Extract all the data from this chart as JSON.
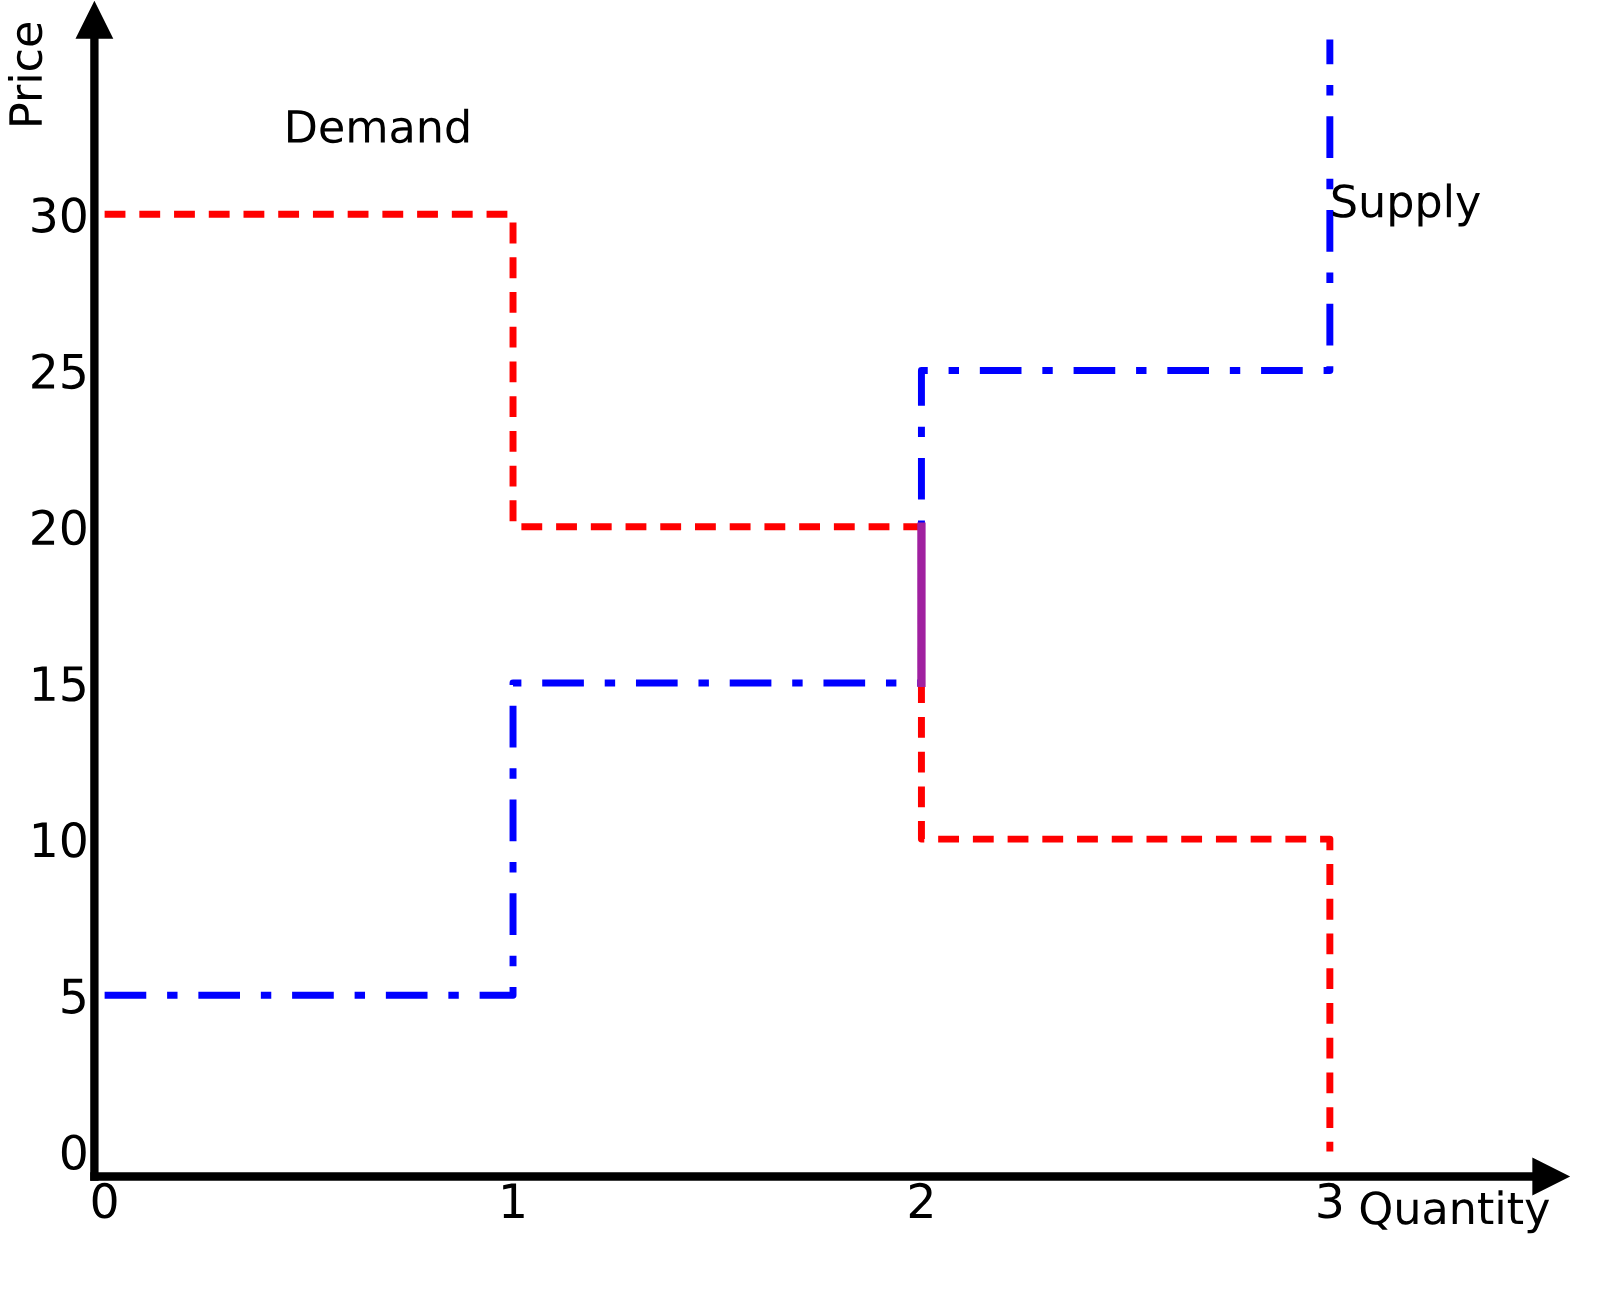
{
  "chart_data": {
    "type": "step",
    "xlabel": "Quantity",
    "ylabel": "Price",
    "xlim": [
      -0.025,
      3.54
    ],
    "ylim": [
      -0.8,
      36.2
    ],
    "xticks": [
      0,
      1,
      2,
      3
    ],
    "yticks": [
      0,
      5,
      10,
      15,
      20,
      25,
      30
    ],
    "grid": false,
    "legend": false,
    "series": [
      {
        "name": "Demand",
        "color": "#ff0000",
        "line_style": "dashed",
        "x": [
          0,
          1,
          2,
          3
        ],
        "values": [
          30,
          20,
          10,
          0
        ]
      },
      {
        "name": "Supply",
        "color": "#0000ff",
        "line_style": "dashdot",
        "x": [
          0,
          1,
          2,
          3
        ],
        "values": [
          5,
          15,
          25,
          35.6
        ]
      },
      {
        "type": "line",
        "color": "#a020a0",
        "line_style": "solid",
        "x": [
          2,
          2
        ],
        "values": [
          15,
          20
        ]
      }
    ]
  }
}
